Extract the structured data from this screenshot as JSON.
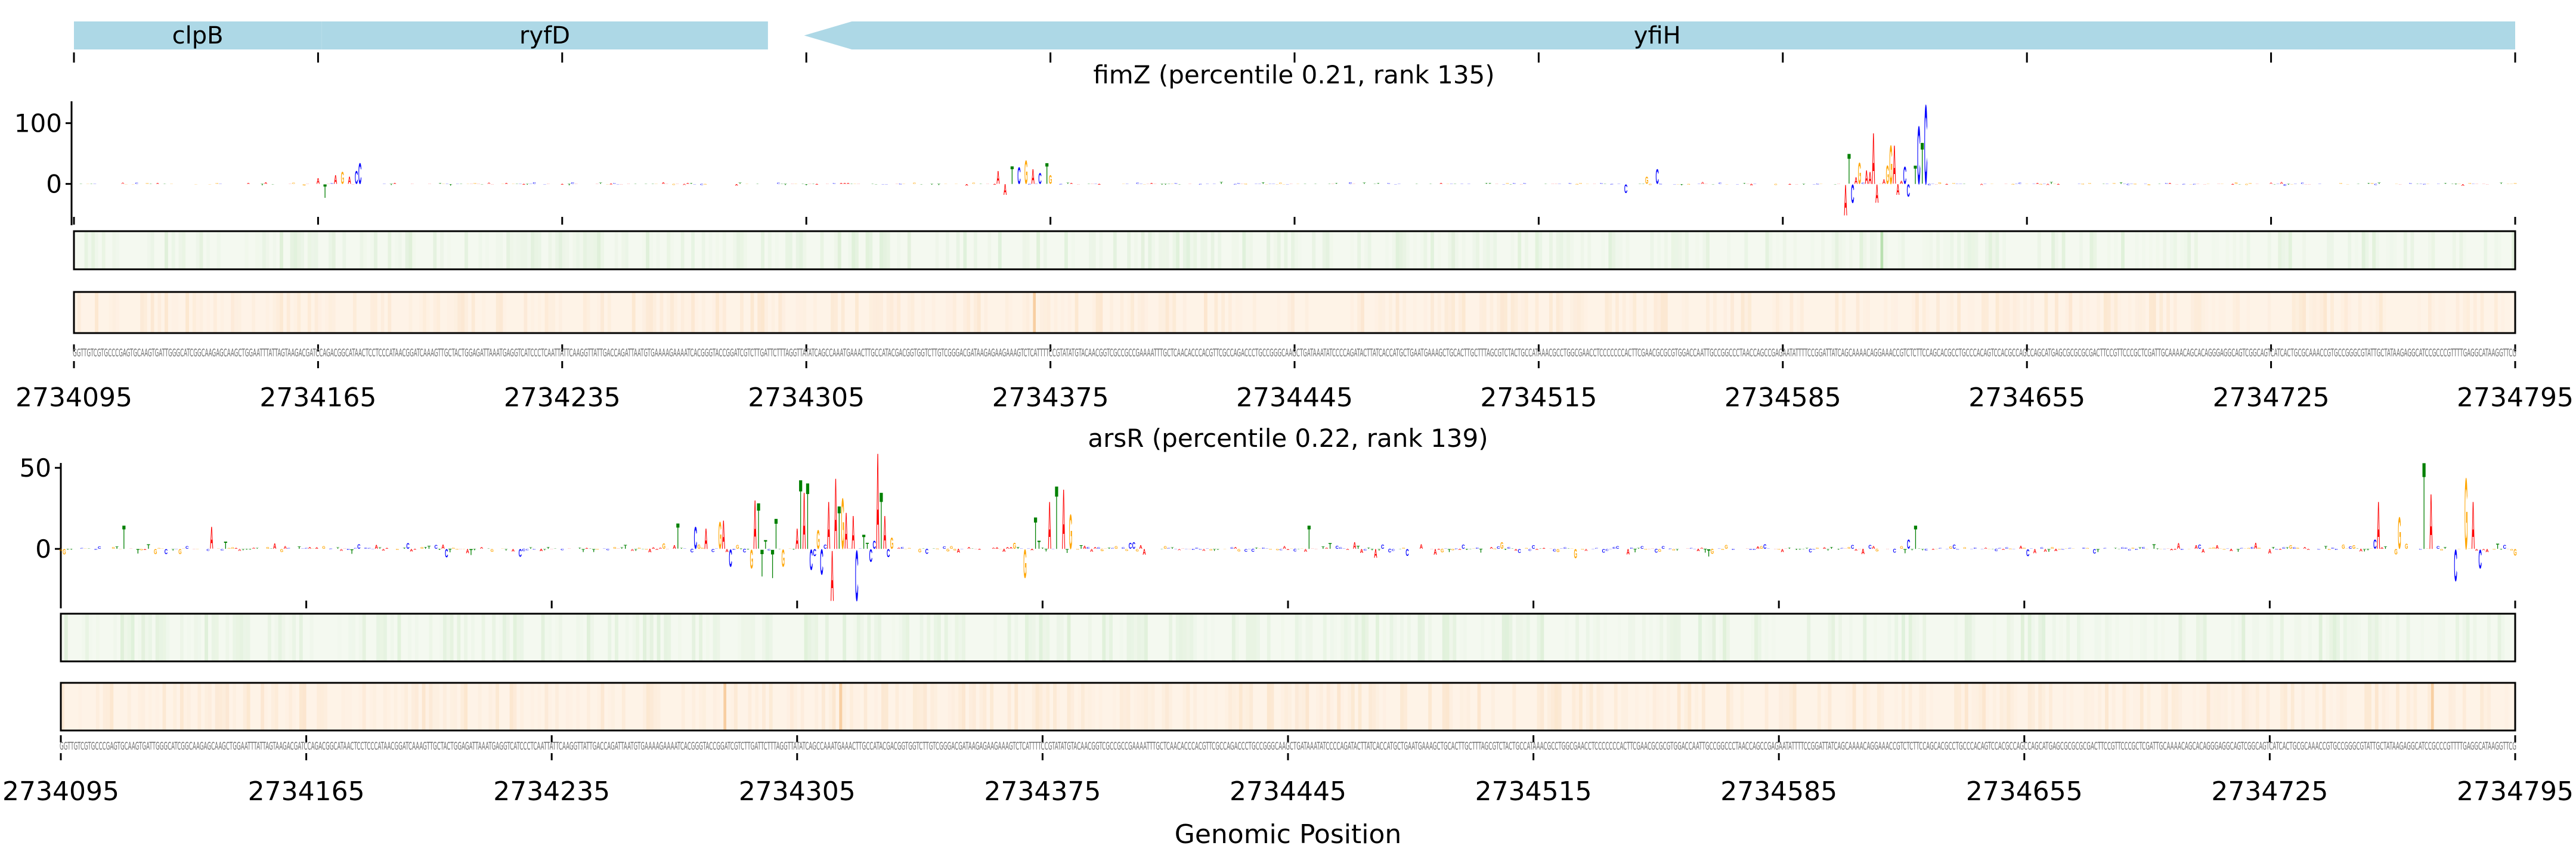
{
  "figure": {
    "xlabel": "Genomic Position"
  },
  "colors": {
    "gene": "#add8e6",
    "A": "#ff0000",
    "C": "#0000ff",
    "G": "#ffa500",
    "T": "#008000",
    "green_track_bg": "#f4f9f0",
    "green_track_stripe": "#b9e0b0",
    "orange_track_bg": "#fef3e7",
    "orange_track_stripe": "#f8cfa2",
    "sequence_text": "#6f6f6f"
  },
  "genes": [
    {
      "name": "clpB",
      "start": 2734095,
      "end": 2734166,
      "strand": "+"
    },
    {
      "name": "ryfD",
      "start": 2734166,
      "end": 2734294,
      "strand": "+"
    },
    {
      "name": "yfiH",
      "start": 2734303,
      "end": 2734795,
      "strand": "-"
    }
  ],
  "sequence": "GGTTGTCGTGCCCGAGTGCAAGTGATTGGGCATCGGCAAGAGCAAGCTGGAATTTATTAGTAAGACGATCCAGACGGCATAACTCCTCCCATAACGGATCAAAGTTGCTACTGGAGATTAAATGAGGTCATCCCTCAATTATTCAAGGTTATTGACCAGATTAATGTGAAAAGAAAATCACGGGTACCGGATCGTCTTGATTCTTTAGGTTATATCAGCCAAATGAAACTTGCCATACGACGGTGGTCTTGTCGGGACGATAAGAGAAGAAAGTCTCATTTTCCGTATATGTACAACGGTCGCCGCCGAAAATTTGCTCAACACCCACGTTCGCCAGACCCTGCCGGGCAAGCTGATAAATATCCCCAGATACTTATCACCATGCTGAATGAAAGCTGCACTTGCTTTAGCGTCTACTGCCATAAACGCCTGGCGAACCTCCCCCCCACTTCGAACGCGCGTGGACCAATTGCCGGCCCTAACCAGCCGAGAATATTTTCCGGATTATCAGCAAAACAGGAAACCGTCTCTTCCAGCACGCCTGCCCACAGTCCACGCCAGCCAGCATGAGCGCGCGCGACTTCCGTTCCCGCTCGATTGCAAAACAGCACAGGGAGGCAGTCGGCAGTCATCACTGCGCAAACCGTGCCGGGCGTATTGCTATAAGAGGCATCCGCCCGTTTTGAGGCATAAGGTTCG",
  "chart_data": [
    {
      "type": "sequence-logo",
      "title": "fimZ (percentile 0.21, rank 135)",
      "xlim": [
        2734095,
        2734795
      ],
      "xticks": [
        2734095,
        2734165,
        2734235,
        2734305,
        2734375,
        2734445,
        2734515,
        2734585,
        2734655,
        2734725,
        2734795
      ],
      "ylim": [
        -68,
        136
      ],
      "yticks": [
        0,
        100
      ],
      "background_amplitude": 4,
      "peaks": [
        [
          2734165,
          "A",
          10
        ],
        [
          2734167,
          "T",
          -23
        ],
        [
          2734170,
          "A",
          15
        ],
        [
          2734172,
          "G",
          20
        ],
        [
          2734174,
          "A",
          12
        ],
        [
          2734176,
          "C",
          22
        ],
        [
          2734177,
          "C",
          35
        ],
        [
          2734360,
          "A",
          22
        ],
        [
          2734362,
          "A",
          -18
        ],
        [
          2734364,
          "T",
          30
        ],
        [
          2734366,
          "C",
          28
        ],
        [
          2734368,
          "G",
          40
        ],
        [
          2734370,
          "A",
          25
        ],
        [
          2734372,
          "C",
          18
        ],
        [
          2734374,
          "T",
          35
        ],
        [
          2734375,
          "G",
          15
        ],
        [
          2734540,
          "C",
          -15
        ],
        [
          2734546,
          "G",
          12
        ],
        [
          2734549,
          "C",
          25
        ],
        [
          2734603,
          "A",
          -52
        ],
        [
          2734604,
          "T",
          51
        ],
        [
          2734605,
          "C",
          -31
        ],
        [
          2734606,
          "A",
          11
        ],
        [
          2734607,
          "G",
          36
        ],
        [
          2734608,
          "C",
          2
        ],
        [
          2734609,
          "A",
          23
        ],
        [
          2734610,
          "A",
          20
        ],
        [
          2734611,
          "A",
          87
        ],
        [
          2734612,
          "A",
          -31
        ],
        [
          2734614,
          "A",
          8
        ],
        [
          2734615,
          "G",
          31
        ],
        [
          2734616,
          "G",
          65
        ],
        [
          2734617,
          "A",
          65
        ],
        [
          2734618,
          "A",
          -18
        ],
        [
          2734619,
          "A",
          5
        ],
        [
          2734620,
          "C",
          29
        ],
        [
          2734621,
          "C",
          -21
        ],
        [
          2734623,
          "T",
          31
        ],
        [
          2734624,
          "C",
          98
        ],
        [
          2734625,
          "T",
          70
        ],
        [
          2734626,
          "C",
          134
        ]
      ],
      "green_track_highlights": [
        2734613
      ],
      "orange_track_highlights": [
        2734370
      ]
    },
    {
      "type": "sequence-logo",
      "title": "arsR (percentile 0.22, rank 139)",
      "xlim": [
        2734095,
        2734795
      ],
      "xticks": [
        2734095,
        2734165,
        2734235,
        2734305,
        2734375,
        2734445,
        2734515,
        2734585,
        2734655,
        2734725,
        2734795
      ],
      "ylim": [
        -33,
        53
      ],
      "yticks": [
        0,
        50
      ],
      "background_amplitude": 8,
      "peaks": [
        [
          2734113,
          "T",
          15
        ],
        [
          2734138,
          "A",
          14
        ],
        [
          2734271,
          "T",
          16
        ],
        [
          2734276,
          "C",
          14
        ],
        [
          2734279,
          "A",
          13
        ],
        [
          2734283,
          "G",
          17
        ],
        [
          2734284,
          "A",
          18
        ],
        [
          2734286,
          "C",
          -11
        ],
        [
          2734292,
          "G",
          -12
        ],
        [
          2734293,
          "A",
          31
        ],
        [
          2734294,
          "T",
          29
        ],
        [
          2734295,
          "T",
          -17
        ],
        [
          2734298,
          "T",
          -18
        ],
        [
          2734299,
          "T",
          19
        ],
        [
          2734301,
          "G",
          -11
        ],
        [
          2734305,
          "A",
          13
        ],
        [
          2734306,
          "T",
          44
        ],
        [
          2734307,
          "A",
          36
        ],
        [
          2734308,
          "T",
          42
        ],
        [
          2734309,
          "C",
          -13
        ],
        [
          2734311,
          "G",
          12
        ],
        [
          2734312,
          "C",
          -16
        ],
        [
          2734314,
          "A",
          30
        ],
        [
          2734315,
          "A",
          -32
        ],
        [
          2734316,
          "A",
          45
        ],
        [
          2734317,
          "T",
          27
        ],
        [
          2734318,
          "G",
          32
        ],
        [
          2734319,
          "A",
          23
        ],
        [
          2734321,
          "A",
          21
        ],
        [
          2734322,
          "C",
          -32
        ],
        [
          2734324,
          "T",
          9
        ],
        [
          2734326,
          "C",
          -8
        ],
        [
          2734327,
          "C",
          5
        ],
        [
          2734328,
          "A",
          61
        ],
        [
          2734329,
          "T",
          36
        ],
        [
          2734330,
          "A",
          21
        ],
        [
          2734331,
          "C",
          -5
        ],
        [
          2734332,
          "G",
          7
        ],
        [
          2734370,
          "G",
          -18
        ],
        [
          2734373,
          "T",
          20
        ],
        [
          2734377,
          "A",
          30
        ],
        [
          2734379,
          "T",
          40
        ],
        [
          2734381,
          "A",
          38
        ],
        [
          2734383,
          "G",
          22
        ],
        [
          2734451,
          "T",
          15
        ],
        [
          2734624,
          "T",
          15
        ],
        [
          2734756,
          "A",
          30
        ],
        [
          2734762,
          "G",
          20
        ],
        [
          2734769,
          "T",
          55
        ],
        [
          2734771,
          "A",
          35
        ],
        [
          2734778,
          "C",
          -20
        ],
        [
          2734781,
          "G",
          45
        ],
        [
          2734783,
          "A",
          30
        ],
        [
          2734785,
          "C",
          -12
        ]
      ],
      "green_track_highlights": [],
      "orange_track_highlights": [
        2734284,
        2734317,
        2734771
      ]
    }
  ]
}
